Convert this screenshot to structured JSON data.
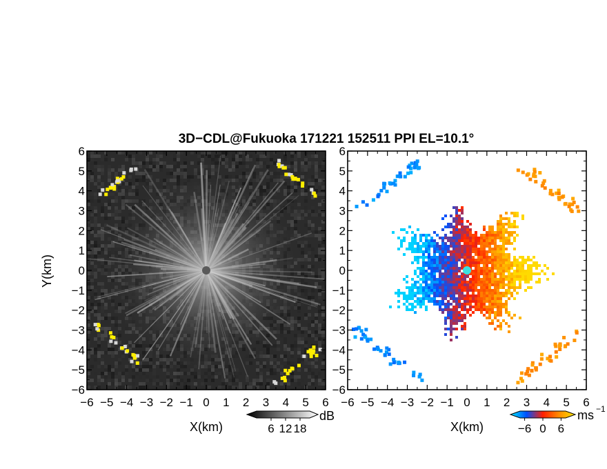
{
  "title": "3D−CDL@Fukuoka 171221 152511 PPI EL=10.1°",
  "chart_data": [
    {
      "type": "heatmap",
      "panel": "reflectivity",
      "xlabel": "X(km)",
      "ylabel": "Y(km)",
      "xlim": [
        -6,
        6
      ],
      "ylim": [
        -6,
        6
      ],
      "xticks": [
        "−6",
        "−5",
        "−4",
        "−3",
        "−2",
        "−1",
        "0",
        "1",
        "2",
        "3",
        "4",
        "5",
        "6"
      ],
      "yticks": [
        "−6",
        "−5",
        "−4",
        "−3",
        "−2",
        "−1",
        "0",
        "1",
        "2",
        "3",
        "4",
        "5",
        "6"
      ],
      "grid": false,
      "background_color": "#2b2b2b",
      "center_marker_color": "#5a5a5a",
      "highlight_color": "#ffee00",
      "colorbar": {
        "unit": "dB",
        "tick_labels": [
          "6",
          "12",
          "18"
        ],
        "ticks": [
          6,
          12,
          18
        ],
        "range": [
          0,
          22
        ],
        "colors": [
          "#000000",
          "#ffffff"
        ]
      }
    },
    {
      "type": "heatmap",
      "panel": "doppler_velocity",
      "xlabel": "X(km)",
      "xlim": [
        -6,
        6
      ],
      "ylim": [
        -6,
        6
      ],
      "xticks": [
        "−6",
        "−5",
        "−4",
        "−3",
        "−2",
        "−1",
        "0",
        "1",
        "2",
        "3",
        "4",
        "5",
        "6"
      ],
      "yticks": [
        "−6",
        "−5",
        "−4",
        "−3",
        "−2",
        "−1",
        "0",
        "1",
        "2",
        "3",
        "4",
        "5",
        "6"
      ],
      "grid": false,
      "background_color": "#ffffff",
      "center_marker_color": "#3de0e0",
      "colorbar": {
        "unit": "ms",
        "unit_exponent": "−1",
        "tick_labels": [
          "−6",
          "0",
          "6"
        ],
        "ticks": [
          -6,
          0,
          6
        ],
        "range": [
          -7.5,
          7.5
        ],
        "colors": [
          "#00e6ff",
          "#0050ff",
          "#ff2000",
          "#ff8c00",
          "#ffe600"
        ]
      }
    }
  ]
}
